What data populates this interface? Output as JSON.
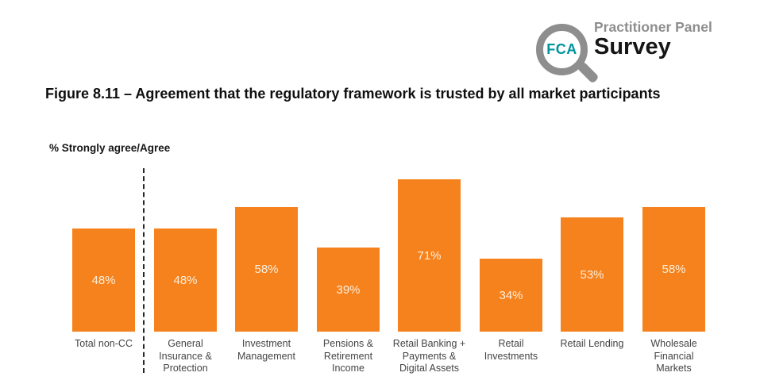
{
  "logo": {
    "fca_text": "FCA",
    "panel_text": "Practitioner Panel",
    "survey_text": "Survey",
    "teal": "#00939B",
    "gray": "#8E8E8E",
    "survey_color": "#161616"
  },
  "figure_title": "Figure 8.11 – Agreement that the regulatory framework is trusted by all market participants",
  "chart_data": {
    "type": "bar",
    "title": "Figure 8.11 – Agreement that the regulatory framework is trusted by all market participants",
    "ylabel": "% Strongly agree/Agree",
    "categories": [
      "Total non-CC",
      "General Insurance & Protection",
      "Investment Management",
      "Pensions & Retirement Income",
      "Retail Banking + Payments & Digital Assets",
      "Retail Investments",
      "Retail Lending",
      "Wholesale Financial Markets"
    ],
    "category_lines": [
      [
        "Total non-CC"
      ],
      [
        "General",
        "Insurance &",
        "Protection"
      ],
      [
        "Investment",
        "Management"
      ],
      [
        "Pensions &",
        "Retirement",
        "Income"
      ],
      [
        "Retail Banking +",
        "Payments &",
        "Digital Assets"
      ],
      [
        "Retail",
        "Investments"
      ],
      [
        "Retail Lending"
      ],
      [
        "Wholesale",
        "Financial",
        "Markets"
      ]
    ],
    "values": [
      48,
      48,
      58,
      39,
      71,
      34,
      53,
      58
    ],
    "value_labels": [
      "48%",
      "48%",
      "58%",
      "39%",
      "71%",
      "34%",
      "53%",
      "58%"
    ],
    "ylim": [
      0,
      100
    ],
    "bar_color": "#F6821E",
    "value_label_color": "#FDEEDA",
    "category_label_color": "#444444",
    "separator": {
      "after_category": "Total non-CC",
      "style": "dashed-vertical-line"
    },
    "grid": false,
    "legend": "none"
  }
}
